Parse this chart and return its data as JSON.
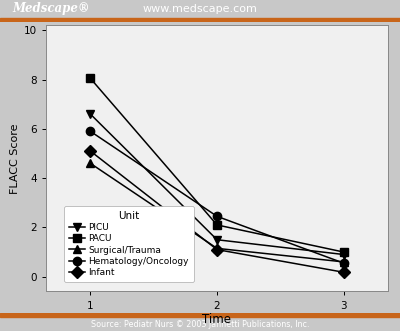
{
  "series": [
    {
      "label": "PICU",
      "marker": "v",
      "values": [
        6.6,
        1.5,
        0.9
      ]
    },
    {
      "label": "PACU",
      "marker": "s",
      "values": [
        8.05,
        2.1,
        1.0
      ]
    },
    {
      "label": "Surgical/Trauma",
      "marker": "^",
      "values": [
        4.6,
        1.15,
        0.6
      ]
    },
    {
      "label": "Hematology/Oncology",
      "marker": "o",
      "values": [
        5.9,
        2.45,
        0.55
      ]
    },
    {
      "label": "Infant",
      "marker": "D",
      "values": [
        5.1,
        1.1,
        0.18
      ]
    }
  ],
  "time": [
    1,
    2,
    3
  ],
  "xlim": [
    0.65,
    3.35
  ],
  "ylim": [
    -0.6,
    10.2
  ],
  "yticks": [
    0,
    2,
    4,
    6,
    8,
    10
  ],
  "xticks": [
    1,
    2,
    3
  ],
  "xlabel": "Time",
  "ylabel": "FLACC Score",
  "legend_title": "Unit",
  "line_color": "black",
  "marker_size": 6,
  "line_width": 1.1,
  "header_bg": "#1e3a6e",
  "header_stripe": "#c8651a",
  "header_text_left": "Medscape®",
  "header_text_center": "www.medscape.com",
  "footer_bg": "#1e3a6e",
  "footer_stripe": "#c8651a",
  "footer_text": "Source: Pediatr Nurs © 2003 Jannetti Publications, Inc.",
  "plot_bg": "#f0f0f0",
  "figure_bg": "#c8c8c8"
}
